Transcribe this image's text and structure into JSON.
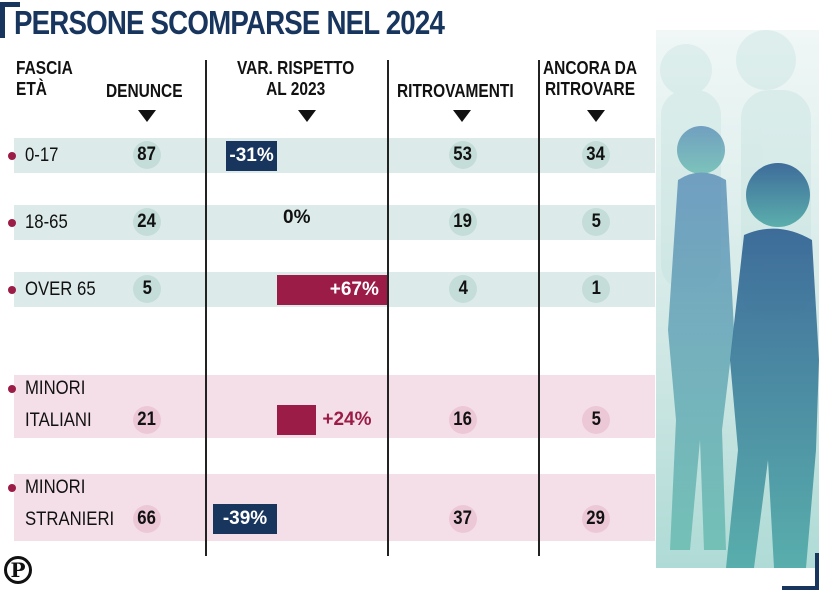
{
  "title": "PERSONE SCOMPARSE NEL 2024",
  "headers": {
    "fascia_line1": "FASCIA",
    "fascia_line2": "ETÀ",
    "denunce": "DENUNCE",
    "var_line1": "VAR. RISPETTO",
    "var_line2": "AL 2023",
    "ritrovamenti": "RITROVAMENTI",
    "ancora_line1": "ANCORA DA",
    "ancora_line2": "RITROVARE"
  },
  "colors": {
    "title": "#18355e",
    "negative_bar": "#18355e",
    "positive_bar": "#9b1c46",
    "band_age": "#dcebe9",
    "band_minors": "#f4dfe8",
    "bullet": "#9b1c46"
  },
  "logo": "P",
  "chart_data": {
    "type": "table",
    "columns": [
      "FASCIA ETÀ",
      "DENUNCE",
      "VAR. RISPETTO AL 2023",
      "RITROVAMENTI",
      "ANCORA DA RITROVARE"
    ],
    "rows": [
      {
        "label_line1": "0-17",
        "label_line2": "",
        "denunce": "87",
        "var": -31,
        "var_label": "-31%",
        "ritrovamenti": "53",
        "ancora": "34",
        "group": "age"
      },
      {
        "label_line1": "18-65",
        "label_line2": "",
        "denunce": "24",
        "var": 0,
        "var_label": "0%",
        "ritrovamenti": "19",
        "ancora": "5",
        "group": "age"
      },
      {
        "label_line1": "OVER 65",
        "label_line2": "",
        "denunce": "5",
        "var": 67,
        "var_label": "+67%",
        "ritrovamenti": "4",
        "ancora": "1",
        "group": "age"
      },
      {
        "label_line1": "MINORI",
        "label_line2": "ITALIANI",
        "denunce": "21",
        "var": 24,
        "var_label": "+24%",
        "ritrovamenti": "16",
        "ancora": "5",
        "group": "minors"
      },
      {
        "label_line1": "MINORI",
        "label_line2": "STRANIERI",
        "denunce": "66",
        "var": -39,
        "var_label": "-39%",
        "ritrovamenti": "37",
        "ancora": "29",
        "group": "minors"
      }
    ]
  }
}
